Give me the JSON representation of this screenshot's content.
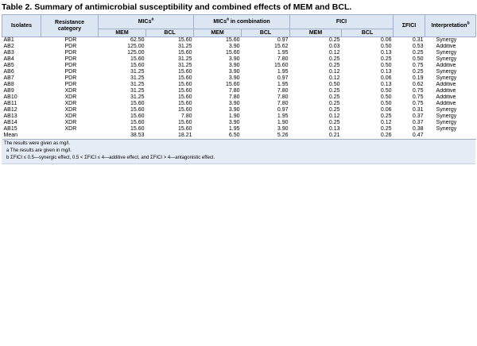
{
  "title": "Table 2. Summary of antimicrobial susceptibility and combined effects of MEM and BCL.",
  "headers": {
    "isolates": "Isolates",
    "resistance": "Resistance category",
    "mics": "MICs",
    "mics_sup": "a",
    "mics_comb": "MICs",
    "mics_comb_sup": "a",
    "mics_comb_suffix": " in combination",
    "fici": "FICI",
    "sum_fici": "ΣFICI",
    "interpretation": "Interpretation",
    "interpretation_sup": "b",
    "mem": "MEM",
    "bcl": "BCL"
  },
  "rows": [
    {
      "isolate": "AB1",
      "category": "PDR",
      "mic_mem": "62.50",
      "mic_bcl": "15.60",
      "comb_mem": "15.60",
      "comb_bcl": "0.97",
      "fici_mem": "0.25",
      "fici_bcl": "0.06",
      "sum": "0.31",
      "interp": "Synergy"
    },
    {
      "isolate": "AB2",
      "category": "PDR",
      "mic_mem": "125.00",
      "mic_bcl": "31.25",
      "comb_mem": "3.90",
      "comb_bcl": "15.62",
      "fici_mem": "0.03",
      "fici_bcl": "0.50",
      "sum": "0.53",
      "interp": "Additive"
    },
    {
      "isolate": "AB3",
      "category": "PDR",
      "mic_mem": "125.00",
      "mic_bcl": "15.60",
      "comb_mem": "15.60",
      "comb_bcl": "1.95",
      "fici_mem": "0.12",
      "fici_bcl": "0.13",
      "sum": "0.25",
      "interp": "Synergy"
    },
    {
      "isolate": "AB4",
      "category": "PDR",
      "mic_mem": "15.60",
      "mic_bcl": "31.25",
      "comb_mem": "3.90",
      "comb_bcl": "7.80",
      "fici_mem": "0.25",
      "fici_bcl": "0.25",
      "sum": "0.50",
      "interp": "Synergy"
    },
    {
      "isolate": "AB5",
      "category": "PDR",
      "mic_mem": "15.60",
      "mic_bcl": "31.25",
      "comb_mem": "3.90",
      "comb_bcl": "15.60",
      "fici_mem": "0.25",
      "fici_bcl": "0.50",
      "sum": "0.75",
      "interp": "Additive"
    },
    {
      "isolate": "AB6",
      "category": "PDR",
      "mic_mem": "31.25",
      "mic_bcl": "15.60",
      "comb_mem": "3.90",
      "comb_bcl": "1.95",
      "fici_mem": "0.12",
      "fici_bcl": "0.13",
      "sum": "0.25",
      "interp": "Synergy"
    },
    {
      "isolate": "AB7",
      "category": "PDR",
      "mic_mem": "31.25",
      "mic_bcl": "15.60",
      "comb_mem": "3.90",
      "comb_bcl": "0.97",
      "fici_mem": "0.12",
      "fici_bcl": "0.06",
      "sum": "0.19",
      "interp": "Synergy"
    },
    {
      "isolate": "AB8",
      "category": "PDR",
      "mic_mem": "31.25",
      "mic_bcl": "15.60",
      "comb_mem": "15.60",
      "comb_bcl": "1.95",
      "fici_mem": "0.50",
      "fici_bcl": "0.13",
      "sum": "0.62",
      "interp": "Additive"
    },
    {
      "isolate": "AB9",
      "category": "XDR",
      "mic_mem": "31.25",
      "mic_bcl": "15.60",
      "comb_mem": "7.80",
      "comb_bcl": "7.80",
      "fici_mem": "0.25",
      "fici_bcl": "0.50",
      "sum": "0.75",
      "interp": "Additive"
    },
    {
      "isolate": "AB10",
      "category": "XDR",
      "mic_mem": "31.25",
      "mic_bcl": "15.60",
      "comb_mem": "7.80",
      "comb_bcl": "7.80",
      "fici_mem": "0.25",
      "fici_bcl": "0.50",
      "sum": "0.75",
      "interp": "Additive"
    },
    {
      "isolate": "AB11",
      "category": "XDR",
      "mic_mem": "15.60",
      "mic_bcl": "15.60",
      "comb_mem": "3.90",
      "comb_bcl": "7.80",
      "fici_mem": "0.25",
      "fici_bcl": "0.50",
      "sum": "0.75",
      "interp": "Additive"
    },
    {
      "isolate": "AB12",
      "category": "XDR",
      "mic_mem": "15.60",
      "mic_bcl": "15.60",
      "comb_mem": "3.90",
      "comb_bcl": "0.97",
      "fici_mem": "0.25",
      "fici_bcl": "0.06",
      "sum": "0.31",
      "interp": "Synergy"
    },
    {
      "isolate": "AB13",
      "category": "XDR",
      "mic_mem": "15.60",
      "mic_bcl": "7.80",
      "comb_mem": "1.90",
      "comb_bcl": "1.95",
      "fici_mem": "0.12",
      "fici_bcl": "0.25",
      "sum": "0.37",
      "interp": "Synergy"
    },
    {
      "isolate": "AB14",
      "category": "XDR",
      "mic_mem": "15.60",
      "mic_bcl": "15.60",
      "comb_mem": "3.90",
      "comb_bcl": "1.90",
      "fici_mem": "0.25",
      "fici_bcl": "0.12",
      "sum": "0.37",
      "interp": "Synergy"
    },
    {
      "isolate": "AB15",
      "category": "XDR",
      "mic_mem": "15.60",
      "mic_bcl": "15.60",
      "comb_mem": "1.95",
      "comb_bcl": "3.90",
      "fici_mem": "0.13",
      "fici_bcl": "0.25",
      "sum": "0.38",
      "interp": "Synergy"
    },
    {
      "isolate": "Mean",
      "category": "",
      "mic_mem": "38.53",
      "mic_bcl": "18.21",
      "comb_mem": "6.50",
      "comb_bcl": "5.26",
      "fici_mem": "0.21",
      "fici_bcl": "0.26",
      "sum": "0.47",
      "interp": ""
    }
  ],
  "notes": [
    {
      "text": "The results were given as mg/l.",
      "sub": false
    },
    {
      "text": "a The results are given in mg/l.",
      "sub": true
    },
    {
      "text": "b ΣFICI ≤ 0.5—synergic effect, 0.5 < ΣFICI ≤ 4—additive effect, and ΣFICI > 4—antagonistic effect.",
      "sub": true
    }
  ]
}
